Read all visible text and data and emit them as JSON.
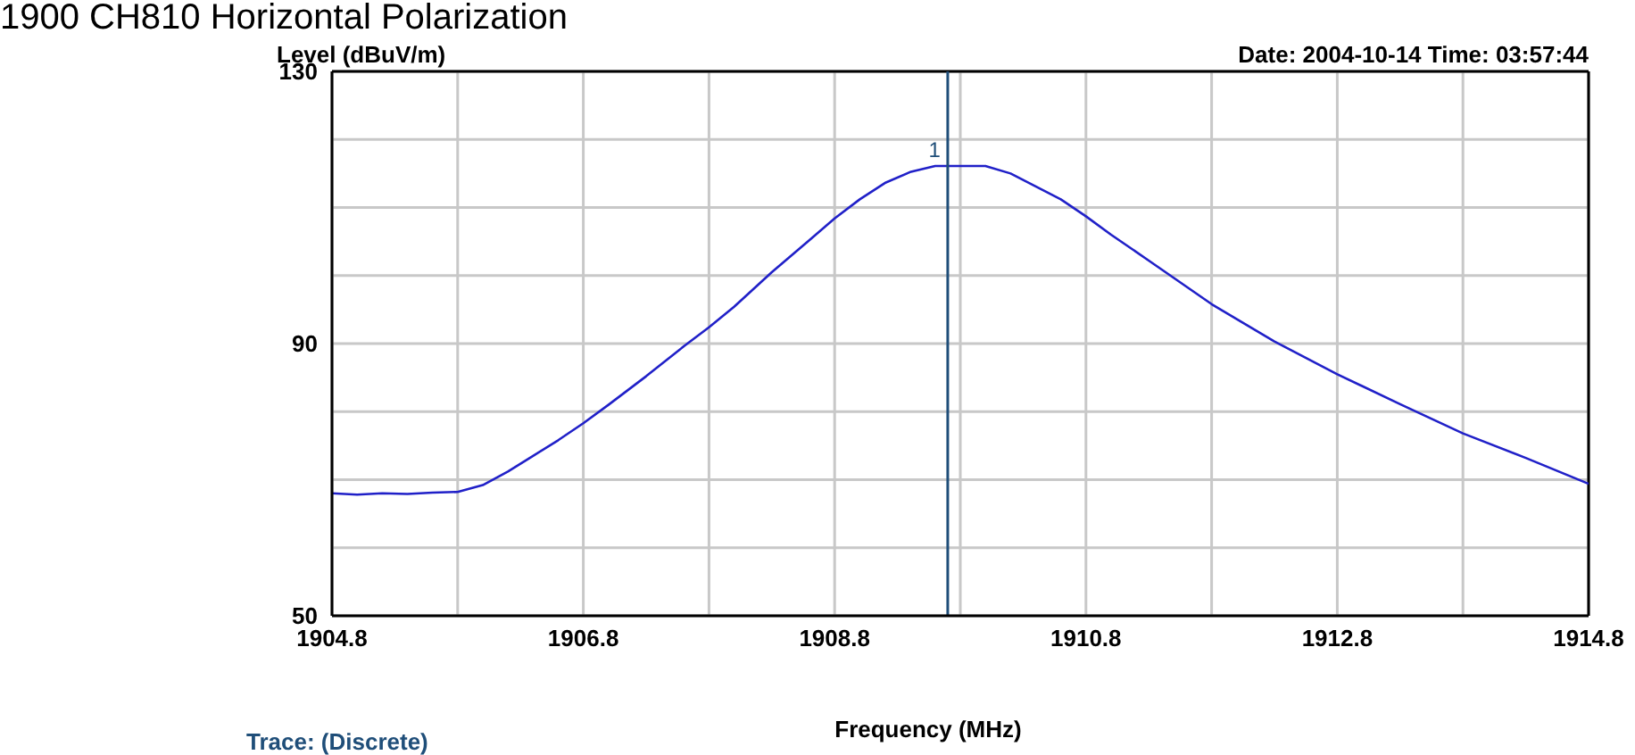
{
  "chart_data": {
    "type": "line",
    "title": "1900 CH810 Horizontal Polarization",
    "xlabel": "Frequency (MHz)",
    "ylabel": "Level (dBuV/m)",
    "annotations": [
      "Date: 2004-10-14  Time: 03:57:44",
      "Trace: (Discrete)",
      {
        "text": "1",
        "x": 1909.7,
        "y": 116.1
      }
    ],
    "x": [
      1904.8,
      1905.0,
      1905.2,
      1905.4,
      1905.6,
      1905.8,
      1906.0,
      1906.2,
      1906.4,
      1906.6,
      1906.8,
      1907.0,
      1907.3,
      1907.6,
      1907.8,
      1908.0,
      1908.3,
      1908.6,
      1908.8,
      1909.0,
      1909.2,
      1909.4,
      1909.6,
      1909.8,
      1910.0,
      1910.2,
      1910.4,
      1910.6,
      1910.8,
      1911.0,
      1911.3,
      1911.8,
      1912.3,
      1912.8,
      1913.3,
      1913.8,
      1914.3,
      1914.8
    ],
    "series": [
      {
        "color": "#2020c8",
        "values": [
          68,
          67.8,
          68,
          67.9,
          68.1,
          68.2,
          69.2,
          71.2,
          73.5,
          75.8,
          78.3,
          81,
          85.2,
          89.6,
          92.4,
          95.4,
          100.5,
          105.2,
          108.4,
          111.2,
          113.6,
          115.2,
          116.1,
          116.1,
          116.1,
          115,
          113.1,
          111.2,
          108.7,
          106,
          102.2,
          95.8,
          90.3,
          85.5,
          81.1,
          76.8,
          73.2,
          69.4
        ]
      }
    ],
    "xlim": [
      1904.8,
      1914.8
    ],
    "xticks": [
      1904.8,
      {
        "value": 1905.8,
        "label": null
      },
      1906.8,
      {
        "value": 1907.8,
        "label": null
      },
      1908.8,
      {
        "value": 1909.8,
        "label": null
      },
      1910.8,
      {
        "value": 1911.8,
        "label": null
      },
      1912.8,
      {
        "value": 1913.8,
        "label": null
      },
      1914.8
    ],
    "ylim": [
      50,
      130
    ],
    "yticks": [
      50,
      {
        "value": 60,
        "label": null
      },
      {
        "value": 70,
        "label": null
      },
      {
        "value": 80,
        "label": null
      },
      90,
      {
        "value": 100,
        "label": null
      },
      {
        "value": 110,
        "label": null
      },
      {
        "value": 120,
        "label": null
      },
      130
    ],
    "ref_lines": [
      {
        "axis": "x",
        "value": 1909.7,
        "color": "#1f4e79"
      }
    ],
    "grid": true,
    "legend": false,
    "marker": "none",
    "line_style": "solid"
  }
}
